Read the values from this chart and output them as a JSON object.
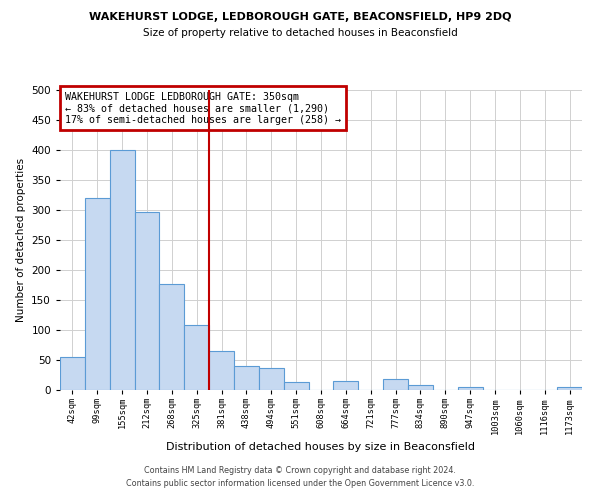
{
  "title": "WAKEHURST LODGE, LEDBOROUGH GATE, BEACONSFIELD, HP9 2DQ",
  "subtitle": "Size of property relative to detached houses in Beaconsfield",
  "xlabel": "Distribution of detached houses by size in Beaconsfield",
  "ylabel": "Number of detached properties",
  "bin_labels": [
    "42sqm",
    "99sqm",
    "155sqm",
    "212sqm",
    "268sqm",
    "325sqm",
    "381sqm",
    "438sqm",
    "494sqm",
    "551sqm",
    "608sqm",
    "664sqm",
    "721sqm",
    "777sqm",
    "834sqm",
    "890sqm",
    "947sqm",
    "1003sqm",
    "1060sqm",
    "1116sqm",
    "1173sqm"
  ],
  "bar_values": [
    55,
    320,
    400,
    297,
    177,
    108,
    65,
    40,
    37,
    13,
    0,
    15,
    0,
    18,
    9,
    0,
    5,
    0,
    0,
    0,
    5
  ],
  "bar_color": "#c6d9f1",
  "bar_edge_color": "#5b9bd5",
  "vline_x": 5.5,
  "vline_color": "#c00000",
  "annotation_title": "WAKEHURST LODGE LEDBOROUGH GATE: 350sqm",
  "annotation_line1": "← 83% of detached houses are smaller (1,290)",
  "annotation_line2": "17% of semi-detached houses are larger (258) →",
  "annotation_box_color": "#c00000",
  "ylim": [
    0,
    500
  ],
  "yticks": [
    0,
    50,
    100,
    150,
    200,
    250,
    300,
    350,
    400,
    450,
    500
  ],
  "footnote1": "Contains HM Land Registry data © Crown copyright and database right 2024.",
  "footnote2": "Contains public sector information licensed under the Open Government Licence v3.0.",
  "bg_color": "#ffffff",
  "grid_color": "#d0d0d0"
}
